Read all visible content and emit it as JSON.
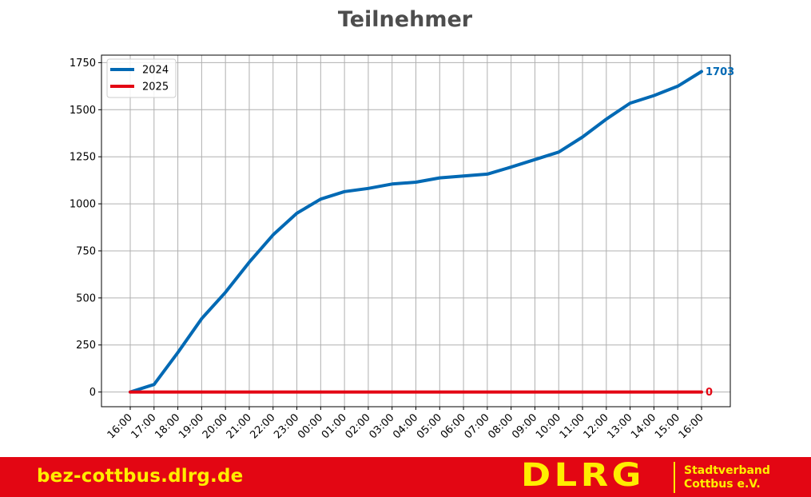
{
  "chart_data": {
    "type": "line",
    "title": "Teilnehmer",
    "categories": [
      "16:00",
      "17:00",
      "18:00",
      "19:00",
      "20:00",
      "21:00",
      "22:00",
      "23:00",
      "00:00",
      "01:00",
      "02:00",
      "03:00",
      "04:00",
      "05:00",
      "06:00",
      "07:00",
      "08:00",
      "09:00",
      "10:00",
      "11:00",
      "12:00",
      "13:00",
      "14:00",
      "15:00",
      "16:00"
    ],
    "series": [
      {
        "name": "2024",
        "color": "#0069b4",
        "values": [
          0,
          40,
          210,
          390,
          530,
          690,
          835,
          950,
          1025,
          1065,
          1082,
          1105,
          1115,
          1138,
          1148,
          1158,
          1195,
          1235,
          1275,
          1355,
          1450,
          1535,
          1575,
          1625,
          1703
        ]
      },
      {
        "name": "2025",
        "color": "#e30613",
        "values": [
          0,
          0,
          0,
          0,
          0,
          0,
          0,
          0,
          0,
          0,
          0,
          0,
          0,
          0,
          0,
          0,
          0,
          0,
          0,
          0,
          0,
          0,
          0,
          0,
          0
        ]
      }
    ],
    "end_labels": [
      "1703",
      "0"
    ],
    "yticks": [
      "0",
      "250",
      "500",
      "750",
      "1000",
      "1250",
      "1500",
      "1750"
    ],
    "ylim": [
      -78,
      1790
    ],
    "grid": true,
    "legend": "top-left"
  },
  "footer": {
    "url": "bez-cottbus.dlrg.de",
    "logo_word": "DLRG",
    "logo_line1": "Stadtverband",
    "logo_line2": "Cottbus e.V.",
    "bar_color": "#e30613",
    "text_color": "#ffed00"
  }
}
